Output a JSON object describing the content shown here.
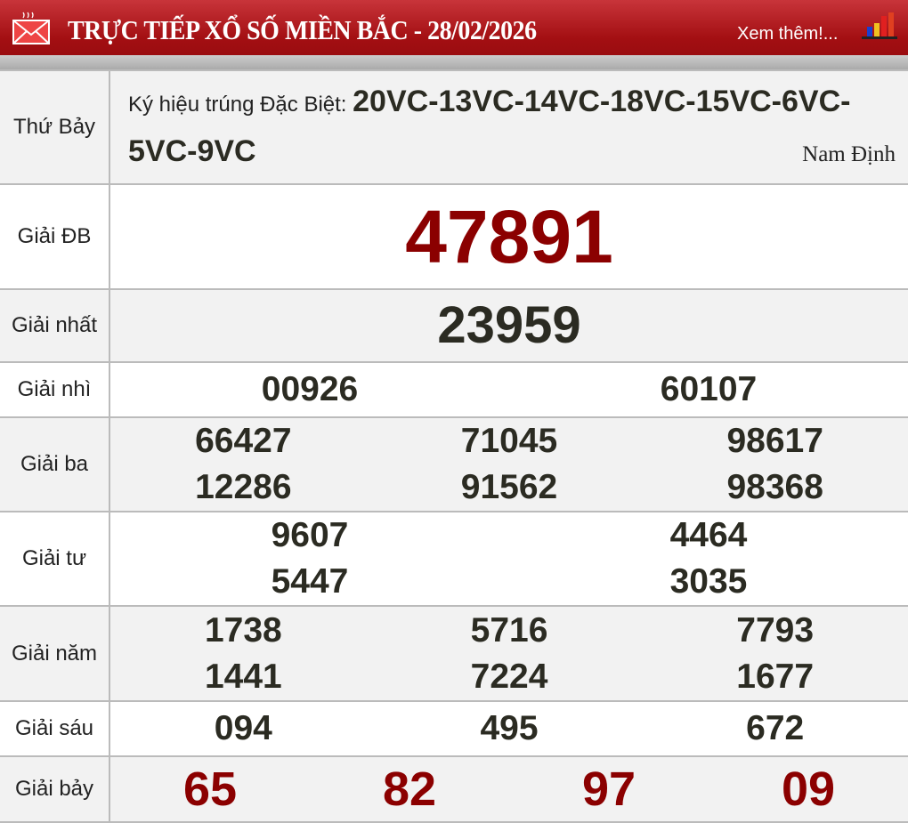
{
  "header": {
    "title": "TRỰC TIẾP XỔ SỐ MIỀN BẮC - 28/02/2026",
    "more_link": "Xem thêm!...",
    "icons": [
      "mail-icon",
      "bar-chart-icon"
    ],
    "accent": "#a30f12"
  },
  "info": {
    "day": "Thứ Bảy",
    "symbol_label": "Ký hiệu trúng Đặc Biệt:",
    "symbols": "20VC-13VC-14VC-18VC-15VC-6VC-5VC-9VC",
    "province": "Nam Định"
  },
  "prizes": [
    {
      "label": "Giải ĐB",
      "numbers": [
        "47891"
      ]
    },
    {
      "label": "Giải nhất",
      "numbers": [
        "23959"
      ]
    },
    {
      "label": "Giải nhì",
      "numbers": [
        "00926",
        "60107"
      ]
    },
    {
      "label": "Giải ba",
      "numbers": [
        "66427",
        "71045",
        "98617",
        "12286",
        "91562",
        "98368"
      ]
    },
    {
      "label": "Giải tư",
      "numbers": [
        "9607",
        "4464",
        "5447",
        "3035"
      ]
    },
    {
      "label": "Giải năm",
      "numbers": [
        "1738",
        "5716",
        "7793",
        "1441",
        "7224",
        "1677"
      ]
    },
    {
      "label": "Giải sáu",
      "numbers": [
        "094",
        "495",
        "672"
      ]
    },
    {
      "label": "Giải bảy",
      "numbers": [
        "65",
        "82",
        "97",
        "09"
      ]
    }
  ]
}
